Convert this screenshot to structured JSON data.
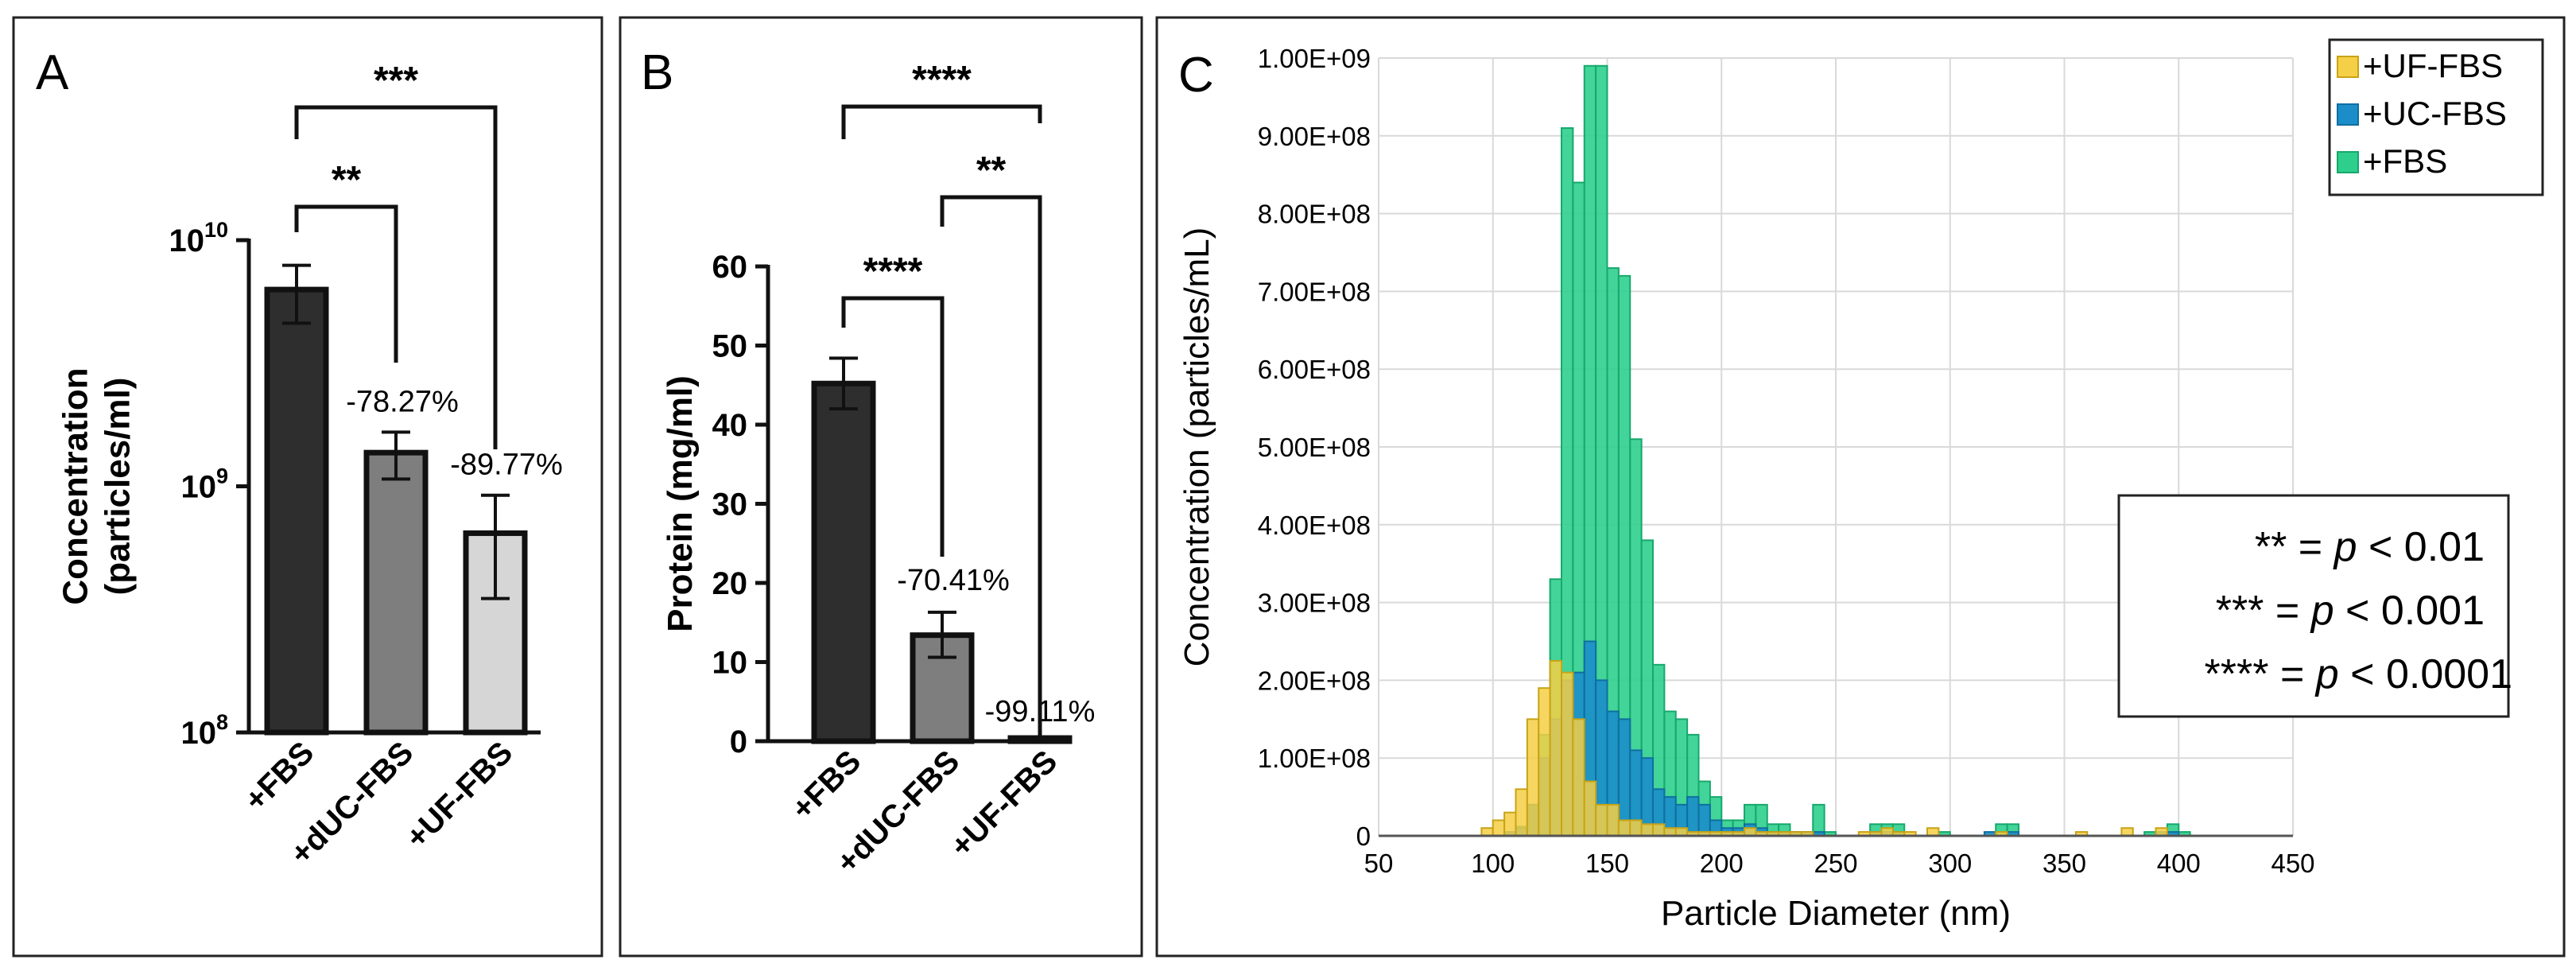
{
  "chart_data": [
    {
      "panel": "A",
      "type": "bar",
      "ylabel": "Concentration (particles/ml)",
      "yscale": "log",
      "ylim": [
        100000000,
        10000000000
      ],
      "yticks": [
        {
          "value": 100000000,
          "base": "10",
          "exp": "8"
        },
        {
          "value": 1000000000,
          "base": "10",
          "exp": "9"
        },
        {
          "value": 10000000000,
          "base": "10",
          "exp": "10"
        }
      ],
      "categories": [
        "+FBS",
        "+dUC-FBS",
        "+UF-FBS"
      ],
      "values": [
        6300000000,
        1370000000,
        645000000
      ],
      "error_low": [
        4600000000,
        1070000000,
        350000000
      ],
      "error_high": [
        7900000000,
        1660000000,
        920000000
      ],
      "bar_colors": [
        "#2e2e2e",
        "#7e7e7e",
        "#d6d6d6"
      ],
      "percent_labels": [
        "",
        "-78.27%",
        "-89.77%"
      ],
      "significance": [
        {
          "from": 0,
          "to": 1,
          "label": "**"
        },
        {
          "from": 0,
          "to": 2,
          "label": "***"
        }
      ]
    },
    {
      "panel": "B",
      "type": "bar",
      "ylabel": "Protein (mg/ml)",
      "ylim": [
        0,
        60
      ],
      "yticks": [
        0,
        10,
        20,
        30,
        40,
        50,
        60
      ],
      "categories": [
        "+FBS",
        "+dUC-FBS",
        "+UF-FBS"
      ],
      "values": [
        45.2,
        13.4,
        0.4
      ],
      "error_low": [
        42.0,
        10.6,
        0.3
      ],
      "error_high": [
        48.4,
        16.3,
        0.5
      ],
      "bar_colors": [
        "#2e2e2e",
        "#7e7e7e",
        "#d6d6d6"
      ],
      "percent_labels": [
        "",
        "-70.41%",
        "-99.11%"
      ],
      "significance": [
        {
          "from": 0,
          "to": 1,
          "label": "****"
        },
        {
          "from": 1,
          "to": 2,
          "label": "**"
        },
        {
          "from": 0,
          "to": 2,
          "label": "****"
        }
      ]
    },
    {
      "panel": "C",
      "type": "histogram",
      "xlabel": "Particle Diameter (nm)",
      "ylabel": "Concentration (particles/mL)",
      "xlim": [
        50,
        450
      ],
      "ylim": [
        0,
        1000000000
      ],
      "xticks": [
        50,
        100,
        150,
        200,
        250,
        300,
        350,
        400,
        450
      ],
      "yticks": [
        0,
        100000000,
        200000000,
        300000000,
        400000000,
        500000000,
        600000000,
        700000000,
        800000000,
        900000000,
        1000000000
      ],
      "ytick_labels": [
        "0",
        "1.00E+08",
        "2.00E+08",
        "3.00E+08",
        "4.00E+08",
        "5.00E+08",
        "6.00E+08",
        "7.00E+08",
        "8.00E+08",
        "9.00E+08",
        "1.00E+09"
      ],
      "bin_width": 5,
      "bin_starts": [
        95,
        100,
        105,
        110,
        115,
        120,
        125,
        130,
        135,
        140,
        145,
        150,
        155,
        160,
        165,
        170,
        175,
        180,
        185,
        190,
        195,
        200,
        205,
        210,
        215,
        220,
        225,
        230,
        235,
        240,
        245,
        250,
        255,
        260,
        265,
        270,
        275,
        280,
        285,
        290,
        295,
        300,
        305,
        310,
        315,
        320,
        325,
        330,
        335,
        340,
        345,
        350,
        355,
        360,
        365,
        370,
        375,
        380,
        385,
        390,
        395,
        400
      ],
      "series": [
        {
          "name": "+FBS",
          "color": "#2ecf8d",
          "edge": "#17a86c",
          "values": [
            0,
            0,
            5000000,
            12000000,
            40000000,
            130000000,
            330000000,
            910000000,
            840000000,
            990000000,
            990000000,
            730000000,
            720000000,
            510000000,
            380000000,
            220000000,
            160000000,
            150000000,
            130000000,
            70000000,
            50000000,
            20000000,
            20000000,
            40000000,
            40000000,
            15000000,
            15000000,
            5000000,
            5000000,
            40000000,
            5000000,
            0,
            0,
            0,
            15000000,
            15000000,
            15000000,
            0,
            0,
            0,
            5000000,
            0,
            0,
            0,
            0,
            15000000,
            15000000,
            0,
            0,
            0,
            0,
            0,
            0,
            0,
            0,
            0,
            0,
            0,
            5000000,
            5000000,
            15000000,
            5000000
          ]
        },
        {
          "name": "+UC-FBS",
          "color": "#1b8ec9",
          "edge": "#0f6fa0",
          "values": [
            0,
            0,
            5000000,
            10000000,
            40000000,
            100000000,
            150000000,
            200000000,
            210000000,
            250000000,
            200000000,
            160000000,
            150000000,
            110000000,
            100000000,
            60000000,
            50000000,
            40000000,
            50000000,
            40000000,
            20000000,
            10000000,
            10000000,
            15000000,
            10000000,
            5000000,
            5000000,
            5000000,
            5000000,
            5000000,
            0,
            0,
            0,
            0,
            5000000,
            5000000,
            5000000,
            0,
            0,
            0,
            0,
            0,
            0,
            0,
            5000000,
            0,
            5000000,
            0,
            0,
            0,
            0,
            0,
            0,
            0,
            0,
            0,
            0,
            0,
            0,
            5000000,
            5000000,
            0
          ]
        },
        {
          "name": "+UF-FBS",
          "color": "#f5cf45",
          "edge": "#c9a316",
          "values": [
            10000000,
            20000000,
            30000000,
            60000000,
            150000000,
            190000000,
            225000000,
            210000000,
            150000000,
            70000000,
            40000000,
            40000000,
            20000000,
            20000000,
            15000000,
            15000000,
            10000000,
            10000000,
            5000000,
            5000000,
            5000000,
            5000000,
            5000000,
            10000000,
            5000000,
            5000000,
            5000000,
            5000000,
            5000000,
            0,
            0,
            0,
            0,
            5000000,
            5000000,
            10000000,
            5000000,
            5000000,
            0,
            10000000,
            0,
            0,
            0,
            0,
            0,
            5000000,
            0,
            0,
            0,
            0,
            0,
            0,
            5000000,
            0,
            0,
            0,
            10000000,
            0,
            0,
            10000000,
            0,
            0
          ]
        }
      ],
      "legend": [
        "+UF-FBS",
        "+UC-FBS",
        "+FBS"
      ],
      "legend_position": "top-right"
    }
  ],
  "significance_key": {
    "lines": [
      {
        "stars": "**",
        "eq": " = ",
        "p": "p",
        "rest": " < 0.01"
      },
      {
        "stars": "***",
        "eq": " = ",
        "p": "p",
        "rest": " < 0.001"
      },
      {
        "stars": "****",
        "eq": " = ",
        "p": "p",
        "rest": " < 0.0001"
      }
    ]
  }
}
